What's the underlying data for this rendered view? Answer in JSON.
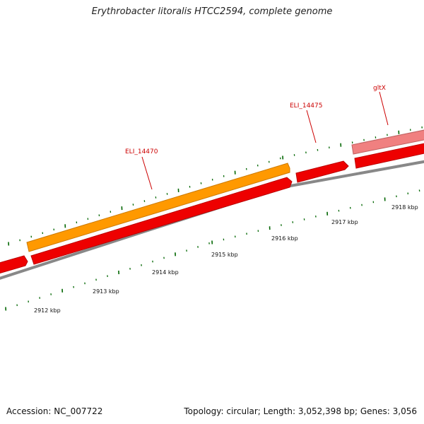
{
  "header": {
    "title": "Erythrobacter litoralis HTCC2594, complete genome"
  },
  "footer": {
    "accession": "Accession: NC_007722",
    "summary": "Topology: circular; Length: 3,052,398 bp; Genes: 3,056"
  },
  "scale": {
    "unit": "kbp",
    "labels": [
      "2912 kbp",
      "2913 kbp",
      "2914 kbp",
      "2915 kbp",
      "2916 kbp",
      "2917 kbp",
      "2918 kbp"
    ]
  },
  "genes": [
    {
      "label": "ELI_14470"
    },
    {
      "label": "ELI_14475"
    },
    {
      "label": "gltX"
    }
  ],
  "colors": {
    "cds": "#ee0000",
    "cds_dark": "#bb0000",
    "orange_feature": "#ff9900",
    "orange_dark": "#cc7a00",
    "pink_feature": "#f08080",
    "pink_dark": "#c06060",
    "backbone": "#888888",
    "tick": "#006600",
    "label": "#cc0000"
  }
}
